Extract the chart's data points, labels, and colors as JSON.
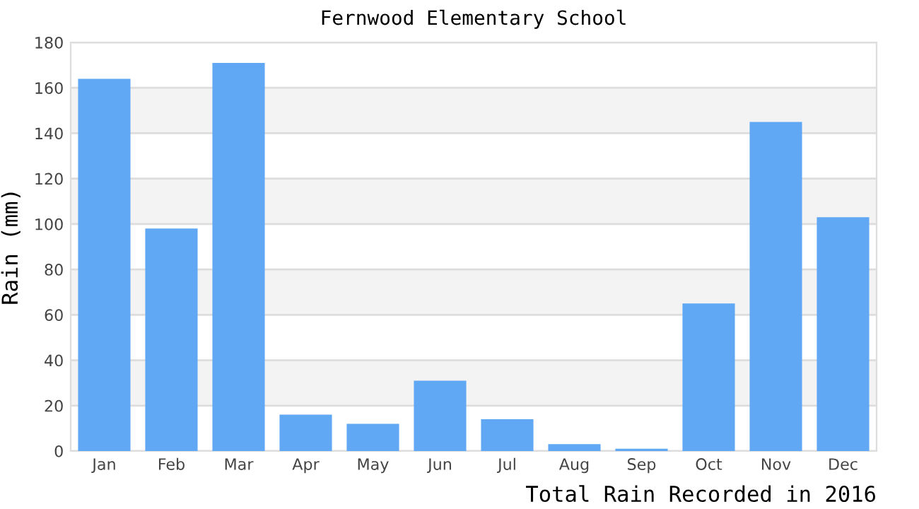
{
  "chart_data": {
    "type": "bar",
    "title": "Fernwood Elementary School",
    "ylabel": "Rain (mm)",
    "annotations": [
      "Total Rain Recorded in 2016"
    ],
    "categories": [
      "Jan",
      "Feb",
      "Mar",
      "Apr",
      "May",
      "Jun",
      "Jul",
      "Aug",
      "Sep",
      "Oct",
      "Nov",
      "Dec"
    ],
    "values": [
      164,
      98,
      171,
      16,
      12,
      31,
      14,
      3,
      1,
      65,
      145,
      103
    ],
    "color": "#60a8f4",
    "ylim": [
      0,
      180
    ],
    "yticks": [
      0,
      20,
      40,
      60,
      80,
      100,
      120,
      140,
      160,
      180
    ],
    "grid": "y",
    "bands": [
      {
        "axis": "y",
        "from": 20,
        "to": 40,
        "color": "#f3f3f3"
      },
      {
        "axis": "y",
        "from": 60,
        "to": 80,
        "color": "#f3f3f3"
      },
      {
        "axis": "y",
        "from": 100,
        "to": 120,
        "color": "#f3f3f3"
      },
      {
        "axis": "y",
        "from": 140,
        "to": 160,
        "color": "#f3f3f3"
      }
    ]
  }
}
